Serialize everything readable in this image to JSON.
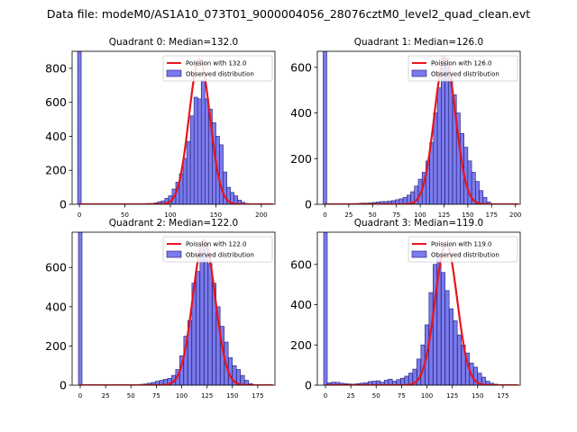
{
  "suptitle": "Data file: modeM0/AS1A10_073T01_9000004056_28076cztM0_level2_quad_clean.evt",
  "legend_labels": {
    "poisson_prefix": "Poission with ",
    "observed": "Observed distribution"
  },
  "colors": {
    "bar_fill": "#7b7bee",
    "bar_edge": "#1a1a6e",
    "poisson_line": "#e8141c",
    "axis": "#000000"
  },
  "chart_data": [
    {
      "type": "bar",
      "title": "Quadrant 0: Median=132.0",
      "median": 132.0,
      "poisson_label": "Poission with 132.0",
      "xlim": [
        -8,
        215
      ],
      "ylim": [
        0,
        900
      ],
      "xticks": [
        0,
        50,
        100,
        150,
        200
      ],
      "yticks": [
        0,
        200,
        400,
        600,
        800
      ],
      "bin_width": 4.1,
      "spike": {
        "x": 0,
        "value": 900
      },
      "bins_x": [
        68,
        72,
        76,
        80,
        84,
        88,
        92,
        96,
        100,
        104,
        108,
        112,
        116,
        120,
        124,
        128,
        132,
        136,
        140,
        144,
        148,
        152,
        156,
        160,
        164,
        168,
        172,
        176,
        180,
        184,
        188
      ],
      "observed": [
        2,
        3,
        5,
        5,
        8,
        15,
        20,
        35,
        50,
        90,
        130,
        180,
        270,
        370,
        520,
        630,
        620,
        730,
        620,
        560,
        480,
        400,
        350,
        190,
        100,
        70,
        50,
        25,
        12,
        5,
        3
      ],
      "poisson_peak": 855
    },
    {
      "type": "bar",
      "title": "Quadrant 1: Median=126.0",
      "median": 126.0,
      "poisson_label": "Poission with 126.0",
      "xlim": [
        -8,
        205
      ],
      "ylim": [
        0,
        670
      ],
      "xticks": [
        0,
        25,
        50,
        75,
        100,
        125,
        150,
        175,
        200
      ],
      "yticks": [
        0,
        200,
        400,
        600
      ],
      "bin_width": 4.0,
      "spike": {
        "x": 0,
        "value": 670
      },
      "bins_x": [
        20,
        24,
        28,
        32,
        36,
        40,
        44,
        48,
        52,
        56,
        60,
        64,
        68,
        72,
        76,
        80,
        84,
        88,
        92,
        96,
        100,
        104,
        108,
        112,
        116,
        120,
        124,
        128,
        132,
        136,
        140,
        144,
        148,
        152,
        156,
        160,
        164,
        168,
        172
      ],
      "observed": [
        2,
        2,
        3,
        3,
        4,
        5,
        5,
        6,
        8,
        10,
        12,
        12,
        14,
        16,
        20,
        24,
        30,
        40,
        55,
        80,
        110,
        140,
        190,
        270,
        400,
        510,
        650,
        640,
        560,
        480,
        400,
        310,
        250,
        190,
        140,
        100,
        60,
        30,
        10
      ],
      "poisson_peak": 640
    },
    {
      "type": "bar",
      "title": "Quadrant 2: Median=122.0",
      "median": 122.0,
      "poisson_label": "Poission with 122.0",
      "xlim": [
        -8,
        192
      ],
      "ylim": [
        0,
        780
      ],
      "xticks": [
        0,
        25,
        50,
        75,
        100,
        125,
        150,
        175
      ],
      "yticks": [
        0,
        200,
        400,
        600
      ],
      "bin_width": 3.8,
      "spike": {
        "x": 0,
        "value": 780
      },
      "bins_x": [
        60,
        64,
        68,
        72,
        76,
        80,
        84,
        88,
        92,
        96,
        100,
        104,
        108,
        112,
        116,
        120,
        124,
        128,
        132,
        136,
        140,
        144,
        148,
        152,
        156,
        160,
        164,
        168
      ],
      "observed": [
        4,
        6,
        10,
        14,
        20,
        25,
        30,
        35,
        50,
        80,
        150,
        250,
        330,
        520,
        580,
        720,
        710,
        620,
        520,
        400,
        300,
        220,
        140,
        100,
        80,
        50,
        25,
        8
      ],
      "poisson_peak": 740
    },
    {
      "type": "bar",
      "title": "Quadrant 3: Median=119.0",
      "median": 119.0,
      "poisson_label": "Poission with 119.0",
      "xlim": [
        -8,
        192
      ],
      "ylim": [
        0,
        760
      ],
      "xticks": [
        0,
        25,
        50,
        75,
        100,
        125,
        150,
        175
      ],
      "yticks": [
        0,
        200,
        400,
        600
      ],
      "bin_width": 3.8,
      "spike": {
        "x": 0,
        "value": 760
      },
      "bins_x": [
        4,
        8,
        12,
        16,
        20,
        24,
        28,
        32,
        36,
        40,
        44,
        48,
        52,
        56,
        60,
        64,
        68,
        72,
        76,
        80,
        84,
        88,
        92,
        96,
        100,
        104,
        108,
        112,
        116,
        120,
        124,
        128,
        132,
        136,
        140,
        144,
        148,
        152,
        156,
        160,
        164,
        168
      ],
      "observed": [
        12,
        15,
        14,
        10,
        8,
        6,
        5,
        8,
        10,
        12,
        18,
        20,
        22,
        15,
        25,
        30,
        20,
        28,
        35,
        45,
        60,
        80,
        130,
        200,
        300,
        460,
        600,
        640,
        560,
        470,
        380,
        320,
        250,
        200,
        160,
        110,
        90,
        60,
        40,
        20,
        10,
        5
      ],
      "poisson_peak": 700
    }
  ]
}
